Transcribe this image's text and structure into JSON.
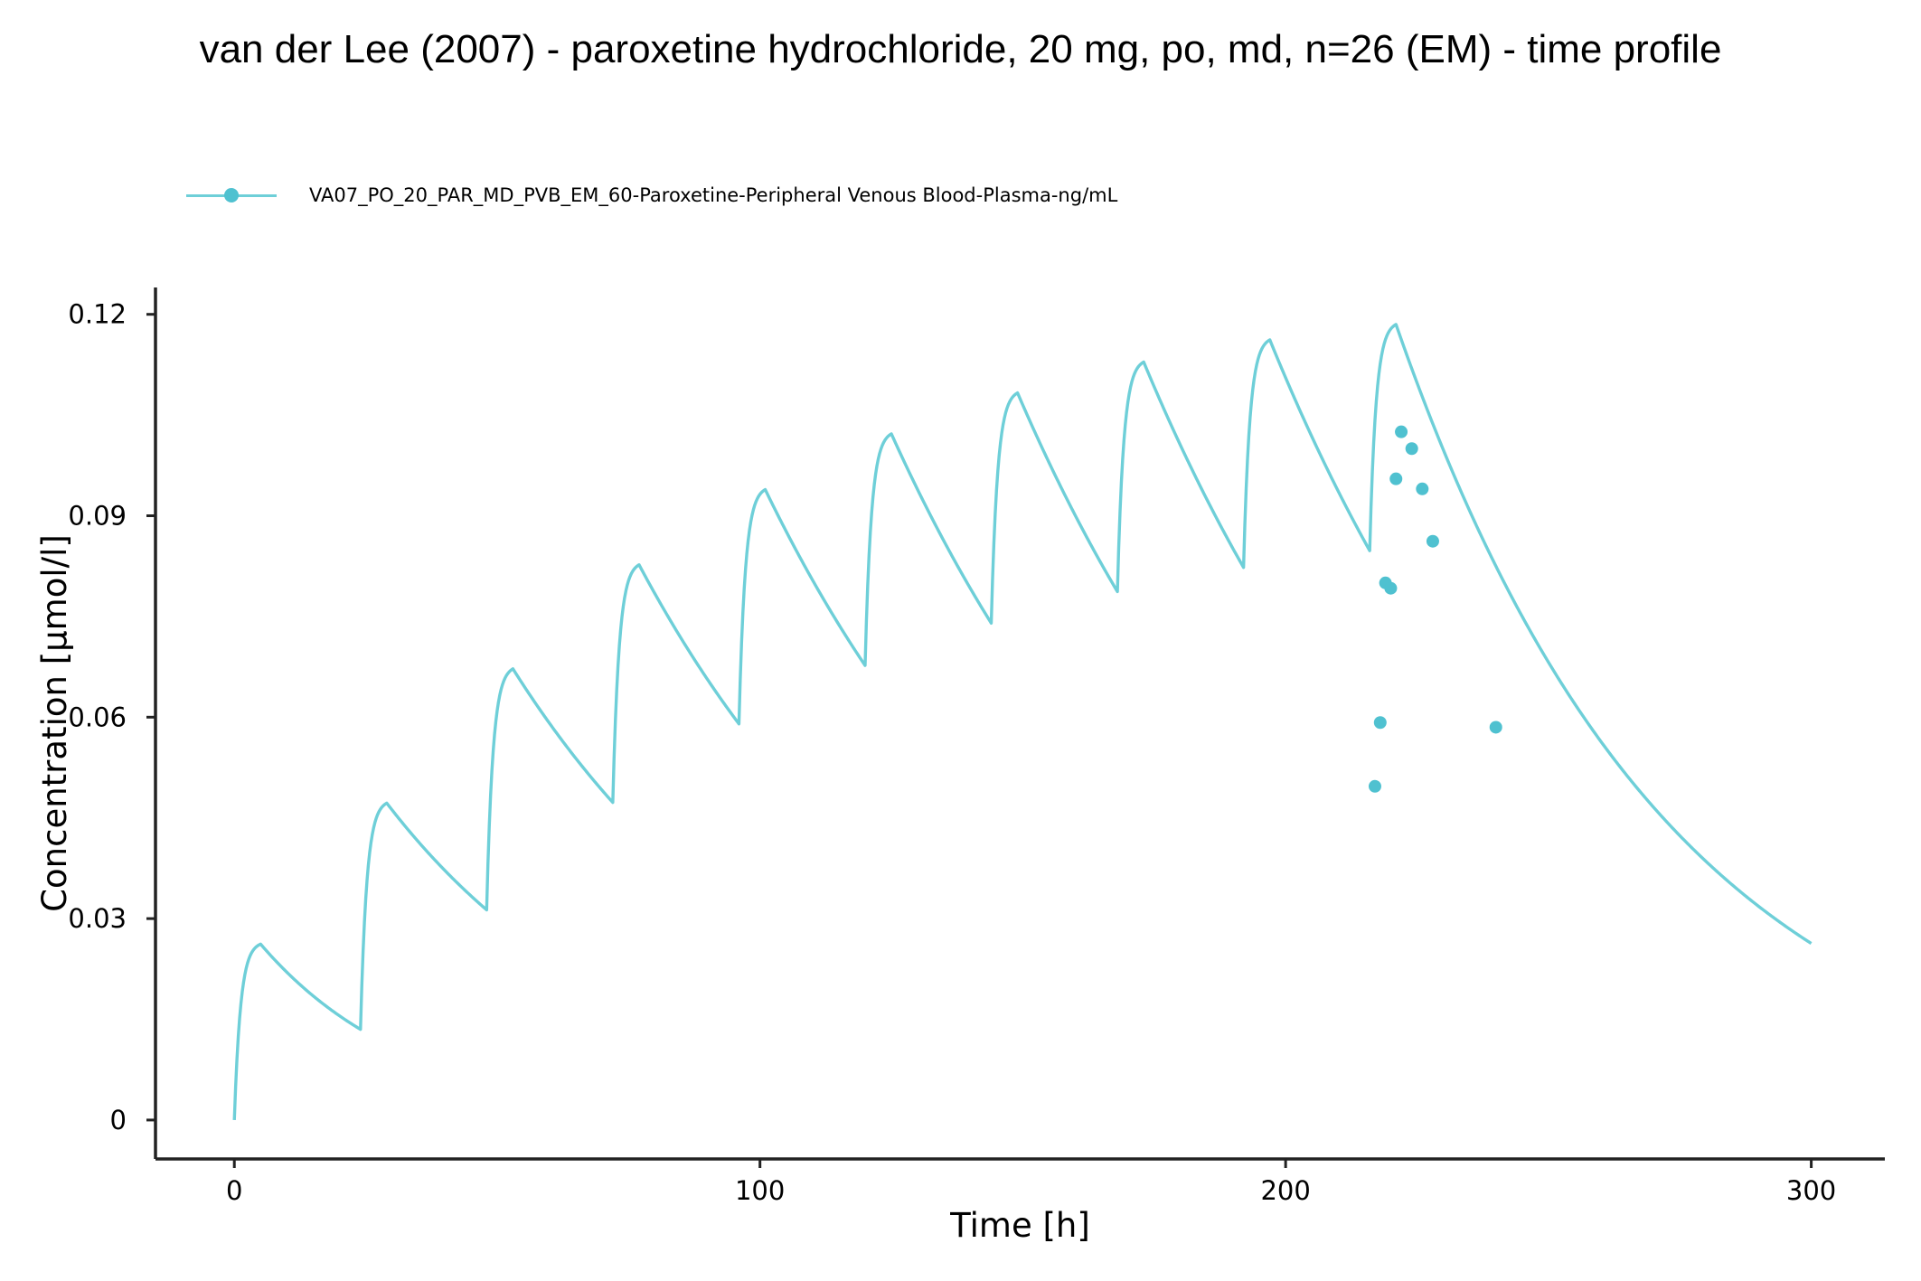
{
  "chart_data": {
    "type": "line",
    "title": "van der Lee (2007) - paroxetine hydrochloride, 20 mg, po, md, n=26 (EM) - time profile",
    "xlabel": "Time [h]",
    "ylabel": "Concentration [µmol/l]",
    "xlim": [
      -15,
      314
    ],
    "ylim": [
      -0.0058,
      0.124
    ],
    "x_ticks": [
      0,
      100,
      200,
      300
    ],
    "x_tick_labels": [
      "0",
      "100",
      "200",
      "300"
    ],
    "y_ticks": [
      0,
      0.03,
      0.06,
      0.09,
      0.12
    ],
    "y_tick_labels": [
      "0",
      "0.03",
      "0.06",
      "0.09",
      "0.12"
    ],
    "grid": false,
    "legend_position": "top-left",
    "series": [
      {
        "name": "VA07_PO_20_PAR_MD_PVB_EM_60-Paroxetine-Peripheral Venous Blood-Plasma-ng/mL",
        "color": "#6ECFD8",
        "simulated": {
          "dosing_interval_h": 24,
          "dose_times_h": [
            0,
            24,
            48,
            72,
            96,
            120,
            144,
            168,
            192,
            216
          ],
          "trough_values": [
            0.0,
            0.0135,
            0.0313,
            0.0473,
            0.059,
            0.0677,
            0.074,
            0.0787,
            0.0823,
            0.0848
          ],
          "peak_times_h": [
            5,
            29,
            53,
            77,
            101,
            125,
            149,
            173,
            197,
            221
          ],
          "peak_values": [
            0.0262,
            0.0472,
            0.0672,
            0.0827,
            0.0939,
            0.1022,
            0.1083,
            0.1129,
            0.1162,
            0.1185
          ],
          "end_time_h": 300,
          "end_value": 0.0263
        },
        "observed": {
          "color": "#4FC1D0",
          "x": [
            217,
            218,
            219,
            220,
            221,
            222,
            224,
            226,
            228,
            240
          ],
          "y": [
            0.0497,
            0.0592,
            0.08,
            0.0792,
            0.0955,
            0.1025,
            0.1,
            0.094,
            0.0862,
            0.0585
          ]
        }
      }
    ]
  }
}
